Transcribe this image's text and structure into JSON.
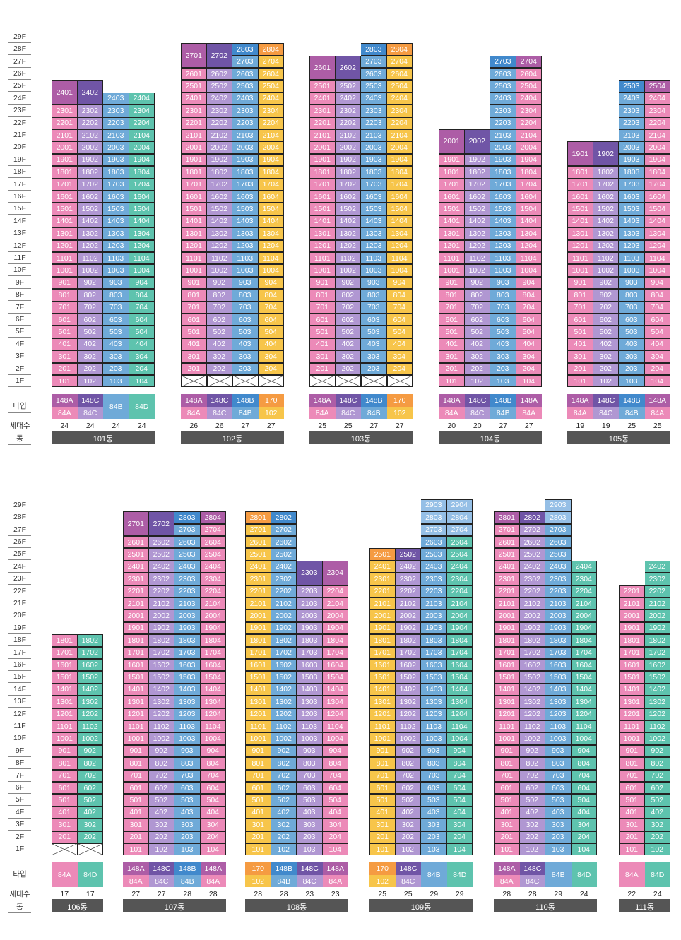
{
  "labels": {
    "type": "타입",
    "count": "세대수",
    "dong": "동"
  },
  "floors": [
    "29F",
    "28F",
    "27F",
    "26F",
    "25F",
    "24F",
    "23F",
    "22F",
    "21F",
    "20F",
    "19F",
    "18F",
    "17F",
    "16F",
    "15F",
    "14F",
    "13F",
    "12F",
    "11F",
    "10F",
    "9F",
    "8F",
    "7F",
    "6F",
    "5F",
    "4F",
    "3F",
    "2F",
    "1F"
  ],
  "colors": {
    "p": "#ec8ab8",
    "v": "#b097d2",
    "b": "#6faad8",
    "t": "#5ec3ae",
    "y": "#f7c54a",
    "m": "#ad5da6",
    "d": "#7055a6",
    "lb": "#95bfe6",
    "o": "#f59b42",
    "B": "#4189cc"
  },
  "buildings": [
    {
      "name": "101동",
      "cols": [
        {
          "top": 24,
          "merge": [
            24,
            25
          ],
          "color": "p",
          "topColor": "m",
          "type1": "148A",
          "type1Color": "m",
          "type2": "84A",
          "type2Color": "p",
          "count": 24
        },
        {
          "top": 24,
          "merge": [
            24,
            25
          ],
          "color": "v",
          "topColor": "d",
          "type1": "148C",
          "type1Color": "d",
          "type2": "84C",
          "type2Color": "v",
          "count": 24
        },
        {
          "top": 24,
          "color": "b",
          "type": "84B",
          "typeColor": "b",
          "count": 24
        },
        {
          "top": 24,
          "color": "t",
          "type": "84D",
          "typeColor": "t",
          "count": 24
        }
      ]
    },
    {
      "name": "102동",
      "pilotis": true,
      "cols": [
        {
          "top": 27,
          "merge": [
            27,
            28
          ],
          "color": "p",
          "topColor": "m",
          "type1": "148A",
          "type1Color": "m",
          "type2": "84A",
          "type2Color": "p",
          "count": 26
        },
        {
          "top": 27,
          "merge": [
            27,
            28
          ],
          "color": "v",
          "topColor": "d",
          "type1": "148C",
          "type1Color": "d",
          "type2": "84C",
          "type2Color": "v",
          "count": 26
        },
        {
          "top": 28,
          "color": "b",
          "topColor": "B",
          "type1": "148B",
          "type1Color": "B",
          "type2": "84B",
          "type2Color": "b",
          "count": 27
        },
        {
          "top": 28,
          "color": "y",
          "topColor": "o",
          "type1": "170",
          "type1Color": "o",
          "type2": "102",
          "type2Color": "y",
          "count": 27
        }
      ]
    },
    {
      "name": "103동",
      "pilotis": true,
      "cols": [
        {
          "top": 26,
          "merge": [
            26,
            27
          ],
          "color": "p",
          "topColor": "m",
          "type1": "148A",
          "type1Color": "m",
          "type2": "84A",
          "type2Color": "p",
          "count": 25
        },
        {
          "top": 26,
          "merge": [
            26,
            27
          ],
          "color": "v",
          "topColor": "d",
          "type1": "148C",
          "type1Color": "d",
          "type2": "84C",
          "type2Color": "v",
          "count": 25
        },
        {
          "top": 28,
          "color": "b",
          "topColor": "B",
          "type1": "148B",
          "type1Color": "B",
          "type2": "84B",
          "type2Color": "b",
          "count": 27
        },
        {
          "top": 28,
          "color": "y",
          "topColor": "o",
          "type1": "170",
          "type1Color": "o",
          "type2": "102",
          "type2Color": "y",
          "count": 27
        }
      ]
    },
    {
      "name": "104동",
      "cols": [
        {
          "top": 20,
          "merge": [
            20,
            21
          ],
          "color": "p",
          "topColor": "m",
          "type1": "148A",
          "type1Color": "m",
          "type2": "84A",
          "type2Color": "p",
          "count": 20
        },
        {
          "top": 20,
          "merge": [
            20,
            21
          ],
          "color": "v",
          "topColor": "d",
          "type1": "148C",
          "type1Color": "d",
          "type2": "84C",
          "type2Color": "v",
          "count": 20
        },
        {
          "top": 27,
          "color": "b",
          "topColor": "B",
          "type1": "148B",
          "type1Color": "B",
          "type2": "84B",
          "type2Color": "b",
          "count": 27
        },
        {
          "top": 27,
          "color": "p",
          "topColor": "m",
          "type1": "148A",
          "type1Color": "m",
          "type2": "84A",
          "type2Color": "p",
          "count": 27
        }
      ]
    },
    {
      "name": "105동",
      "cols": [
        {
          "top": 19,
          "merge": [
            19,
            20
          ],
          "color": "p",
          "topColor": "m",
          "type1": "148A",
          "type1Color": "m",
          "type2": "84A",
          "type2Color": "p",
          "count": 19
        },
        {
          "top": 19,
          "merge": [
            19,
            20
          ],
          "color": "v",
          "topColor": "d",
          "type1": "148C",
          "type1Color": "d",
          "type2": "84C",
          "type2Color": "v",
          "count": 19
        },
        {
          "top": 25,
          "color": "b",
          "topColor": "B",
          "type1": "148B",
          "type1Color": "B",
          "type2": "84B",
          "type2Color": "b",
          "count": 25
        },
        {
          "top": 25,
          "color": "p",
          "topColor": "m",
          "type1": "148A",
          "type1Color": "m",
          "type2": "84A",
          "type2Color": "p",
          "count": 25
        }
      ]
    },
    {
      "name": "106동",
      "pilotis": true,
      "cols": [
        {
          "top": 18,
          "color": "p",
          "type": "84A",
          "typeColor": "p",
          "count": 17
        },
        {
          "top": 18,
          "color": "t",
          "type": "84D",
          "typeColor": "t",
          "count": 17
        }
      ]
    },
    {
      "name": "107동",
      "cols": [
        {
          "top": 27,
          "merge": [
            27,
            28
          ],
          "color": "p",
          "topColor": "m",
          "type1": "148A",
          "type1Color": "m",
          "type2": "84A",
          "type2Color": "p",
          "count": 27
        },
        {
          "top": 27,
          "merge": [
            27,
            28
          ],
          "color": "v",
          "topColor": "d",
          "type1": "148C",
          "type1Color": "d",
          "type2": "84C",
          "type2Color": "v",
          "count": 27
        },
        {
          "top": 28,
          "color": "b",
          "topColor": "B",
          "type1": "148B",
          "type1Color": "B",
          "type2": "84B",
          "type2Color": "b",
          "count": 28
        },
        {
          "top": 28,
          "color": "p",
          "topColor": "m",
          "type1": "148A",
          "type1Color": "m",
          "type2": "84A",
          "type2Color": "p",
          "count": 28
        }
      ]
    },
    {
      "name": "108동",
      "cols": [
        {
          "top": 28,
          "color": "y",
          "topColor": "o",
          "type1": "170",
          "type1Color": "o",
          "type2": "102",
          "type2Color": "y",
          "count": 28
        },
        {
          "top": 28,
          "color": "b",
          "topColor": "B",
          "type1": "148B",
          "type1Color": "B",
          "type2": "84B",
          "type2Color": "b",
          "count": 28
        },
        {
          "top": 23,
          "merge": [
            23,
            24
          ],
          "color": "v",
          "topColor": "d",
          "type1": "148C",
          "type1Color": "d",
          "type2": "84C",
          "type2Color": "v",
          "count": 23
        },
        {
          "top": 23,
          "merge": [
            23,
            24
          ],
          "color": "p",
          "topColor": "m",
          "type1": "148A",
          "type1Color": "m",
          "type2": "84A",
          "type2Color": "p",
          "count": 23
        }
      ]
    },
    {
      "name": "109동",
      "cols": [
        {
          "top": 25,
          "color": "y",
          "topColor": "o",
          "type1": "170",
          "type1Color": "o",
          "type2": "102",
          "type2Color": "y",
          "count": 25
        },
        {
          "top": 25,
          "color": "v",
          "topColor": "d",
          "type1": "148C",
          "type1Color": "d",
          "type2": "84C",
          "type2Color": "v",
          "count": 25
        },
        {
          "top": 29,
          "color": "b",
          "topColor": "lb",
          "topFloors": 3,
          "type": "84B",
          "typeColor": "b",
          "count": 29
        },
        {
          "top": 29,
          "color": "t",
          "topColor": "lb",
          "topFloors": 3,
          "type": "84D",
          "typeColor": "t",
          "count": 29
        }
      ]
    },
    {
      "name": "110동",
      "cols": [
        {
          "top": 28,
          "color": "p",
          "topColor": "m",
          "type1": "148A",
          "type1Color": "m",
          "type2": "84A",
          "type2Color": "p",
          "count": 28
        },
        {
          "top": 28,
          "color": "v",
          "topColor": "d",
          "type1": "148C",
          "type1Color": "d",
          "type2": "84C",
          "type2Color": "v",
          "count": 28
        },
        {
          "top": 29,
          "color": "b",
          "topColor": "lb",
          "topFloors": 2,
          "type": "84B",
          "typeColor": "b",
          "count": 29
        },
        {
          "top": 24,
          "color": "t",
          "type": "84D",
          "typeColor": "t",
          "count": 24
        }
      ]
    },
    {
      "name": "111동",
      "cols": [
        {
          "top": 22,
          "color": "p",
          "type": "84A",
          "typeColor": "p",
          "count": 22
        },
        {
          "top": 24,
          "color": "t",
          "type": "84D",
          "typeColor": "t",
          "count": 24
        }
      ]
    }
  ]
}
